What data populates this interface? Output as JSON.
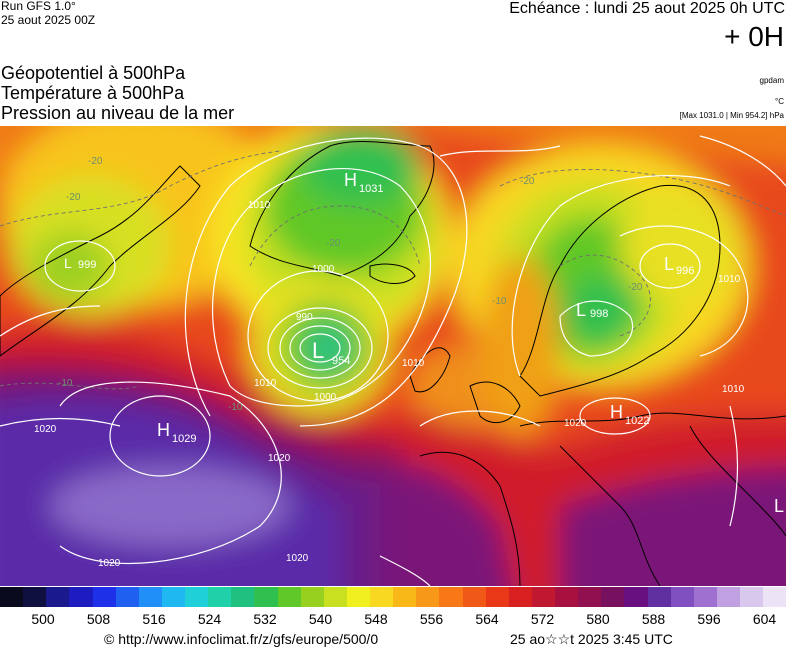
{
  "header": {
    "run_label": "Run GFS 1.0°",
    "run_date": "25 aout 2025 00Z",
    "echeance": "Echéance : lundi 25 aout 2025 0h UTC",
    "lead": "+ 0H",
    "titles": [
      "Géopotentiel à 500hPa",
      "Température à 500hPa",
      "Pression au niveau de la mer"
    ],
    "unit_geopotential": "gpdam",
    "unit_temperature": "°C",
    "pressure_range": "[Max 1031.0 | Min 954.2] hPa"
  },
  "map": {
    "pressure_centers": [
      {
        "type": "H",
        "value": "1031",
        "place": "Greenland"
      },
      {
        "type": "L",
        "value": "954",
        "place": "south of Iceland"
      },
      {
        "type": "H",
        "value": "1029",
        "place": "Azores"
      },
      {
        "type": "L",
        "value": "999",
        "place": "Labrador"
      },
      {
        "type": "L",
        "value": "996",
        "place": "NW Russia"
      },
      {
        "type": "L",
        "value": "998",
        "place": "Baltic"
      },
      {
        "type": "H",
        "value": "1022",
        "place": "Central Europe"
      },
      {
        "type": "L",
        "value": "",
        "place": "east edge"
      }
    ],
    "isobar_labels": [
      "1000",
      "990",
      "1010",
      "1020",
      "1020",
      "1020",
      "1010",
      "1010",
      "1010",
      "1020",
      "1000",
      "1020",
      "1010"
    ],
    "temperature_labels": [
      "-20",
      "-20",
      "-20",
      "-10",
      "-20",
      "-20",
      "-10",
      "-10"
    ]
  },
  "colorbar": {
    "ticks": [
      "500",
      "508",
      "516",
      "524",
      "532",
      "540",
      "548",
      "556",
      "564",
      "572",
      "580",
      "588",
      "596",
      "604"
    ],
    "colors": [
      "#0a0a1e",
      "#101040",
      "#1a1a8c",
      "#1c1cc0",
      "#1e30e8",
      "#2060f0",
      "#2090f8",
      "#20b8f0",
      "#20d0d8",
      "#20d0a8",
      "#20c080",
      "#30c050",
      "#60c828",
      "#98d020",
      "#c8e020",
      "#f0f020",
      "#f8d820",
      "#f8b818",
      "#f89818",
      "#f87818",
      "#f05818",
      "#e83818",
      "#d82020",
      "#c01830",
      "#a81040",
      "#901050",
      "#781060",
      "#681080",
      "#6030a0",
      "#8050c0",
      "#a070d0",
      "#c0a0e0",
      "#d8c8ee",
      "#ece4f6"
    ]
  },
  "footer": {
    "url": "© http://www.infoclimat.fr/z/gfs/europe/500/0",
    "timestamp": "25 ao☆☆t 2025  3:45 UTC"
  },
  "colors": {
    "land_outline": "#000000",
    "isobar": "#ffffff",
    "isotherm": "#6f6f6f"
  }
}
